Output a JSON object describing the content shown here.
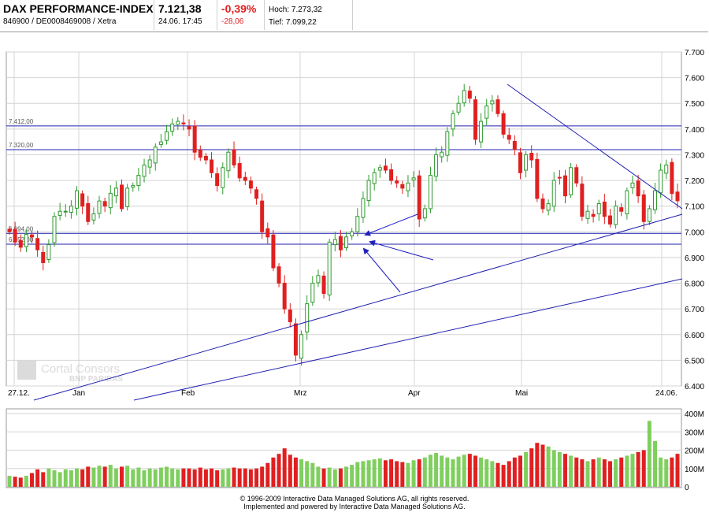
{
  "header": {
    "title": "DAX PERFORMANCE-INDEX",
    "subtitle": "846900 / DE0008469008 / Xetra",
    "last_price": "7.121,38",
    "last_time": "24.06. 17:45",
    "change_pct": "-0,39%",
    "change_abs": "-28,06",
    "high": "Hoch: 7.273,32",
    "low": "Tief: 7.099,22"
  },
  "watermark": {
    "name": "Cortal Consors",
    "sub": "BNP PARIBAS"
  },
  "footer": {
    "line1": "© 1996-2009 Interactive Data Managed Solutions AG, all rights reserved.",
    "line2": "Implemented and powered by  Interactive Data Managed Solutions AG."
  },
  "colors": {
    "up": "#2e9a2e",
    "down": "#e02020",
    "up_bar": "#7fcf5e",
    "lines": "#2020b0",
    "grid": "#d4d4d4"
  },
  "chart_data": [
    {
      "type": "candlestick",
      "xlabel": "",
      "ylabel": "",
      "x_tick_labels": [
        "27.12.",
        "Jan",
        "Feb",
        "Mrz",
        "Apr",
        "Mai",
        "24.06."
      ],
      "ylim": [
        6400,
        7700
      ],
      "y_ticks": [
        "7.700",
        "7.600",
        "7.500",
        "7.400",
        "7.300",
        "7.200",
        "7.100",
        "7.000",
        "6.900",
        "6.800",
        "6.700",
        "6.600",
        "6.500",
        "6.400"
      ],
      "y_tick_values": [
        7700,
        7600,
        7500,
        7400,
        7300,
        7200,
        7100,
        7000,
        6900,
        6800,
        6700,
        6600,
        6500,
        6400
      ],
      "grid": true,
      "levels": [
        {
          "value": 7412,
          "label": "7.412,00"
        },
        {
          "value": 7320,
          "label": "7.320,00"
        },
        {
          "value": 6994,
          "label": "6.994,00"
        },
        {
          "value": 6952,
          "label": "6.952,00"
        }
      ],
      "closes": [
        7000,
        6960,
        6940,
        6990,
        6980,
        6930,
        6880,
        6950,
        7060,
        7080,
        7080,
        7100,
        7160,
        7100,
        7040,
        7070,
        7120,
        7100,
        7150,
        7170,
        7090,
        7170,
        7180,
        7220,
        7260,
        7280,
        7330,
        7350,
        7390,
        7420,
        7430,
        7420,
        7400,
        7310,
        7290,
        7280,
        7230,
        7180,
        7250,
        7310,
        7260,
        7210,
        7200,
        7170,
        7130,
        7000,
        6980,
        6860,
        6800,
        6700,
        6650,
        6520,
        6600,
        6720,
        6800,
        6830,
        6760,
        6960,
        6970,
        6930,
        6980,
        7000,
        7060,
        7130,
        7200,
        7230,
        7250,
        7240,
        7200,
        7190,
        7170,
        7190,
        7210,
        7050,
        7090,
        7220,
        7300,
        7310,
        7390,
        7460,
        7500,
        7550,
        7520,
        7360,
        7430,
        7490,
        7510,
        7460,
        7380,
        7360,
        7320,
        7230,
        7300,
        7280,
        7130,
        7090,
        7110,
        7200,
        7210,
        7140,
        7250,
        7190,
        7060,
        7080,
        7060,
        7110,
        7060,
        7030,
        7100,
        7080,
        7160,
        7190,
        7140,
        7040,
        7090,
        7160,
        7240,
        7260,
        7149,
        7121
      ]
    },
    {
      "type": "bar",
      "title": "",
      "y_ticks": [
        "400M",
        "300M",
        "200M",
        "100M",
        "0"
      ],
      "y_tick_values": [
        400,
        300,
        200,
        100,
        0
      ],
      "ylim": [
        0,
        400
      ],
      "unit": "M",
      "values": [
        60,
        55,
        50,
        60,
        75,
        95,
        80,
        100,
        90,
        80,
        95,
        90,
        100,
        95,
        110,
        105,
        115,
        110,
        120,
        100,
        110,
        115,
        95,
        105,
        90,
        100,
        95,
        105,
        110,
        100,
        95,
        100,
        100,
        95,
        105,
        95,
        100,
        90,
        95,
        100,
        105,
        100,
        100,
        95,
        100,
        110,
        130,
        160,
        180,
        210,
        175,
        160,
        150,
        140,
        130,
        110,
        100,
        105,
        95,
        100,
        110,
        120,
        135,
        140,
        145,
        150,
        155,
        145,
        150,
        140,
        135,
        130,
        145,
        150,
        160,
        175,
        185,
        170,
        160,
        150,
        165,
        175,
        180,
        170,
        160,
        150,
        140,
        130,
        120,
        140,
        160,
        170,
        190,
        210,
        240,
        230,
        220,
        200,
        190,
        180,
        170,
        160,
        150,
        140,
        150,
        160,
        150,
        140,
        150,
        160,
        170,
        180,
        190,
        200,
        360,
        250,
        160,
        150,
        160,
        180
      ]
    }
  ]
}
